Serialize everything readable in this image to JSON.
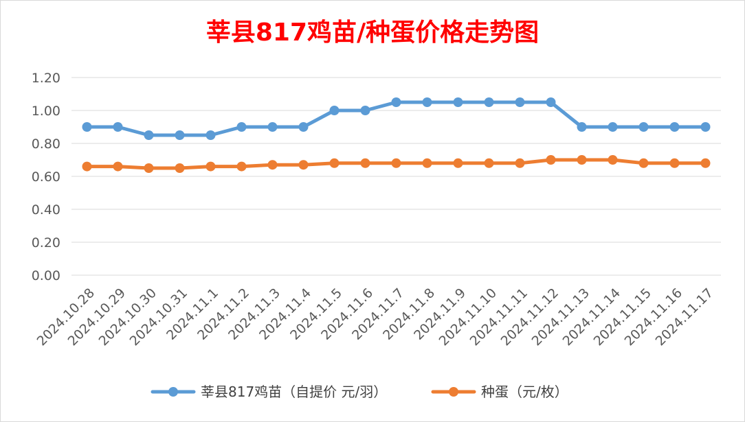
{
  "chart_data": {
    "type": "line",
    "title": "莘县817鸡苗/种蛋价格走势图",
    "title_color": "#ff0000",
    "categories": [
      "2024.10.28",
      "2024.10.29",
      "2024.10.30",
      "2024.10.31",
      "2024.11.1",
      "2024.11.2",
      "2024.11.3",
      "2024.11.4",
      "2024.11.5",
      "2024.11.6",
      "2024.11.7",
      "2024.11.8",
      "2024.11.9",
      "2024.11.10",
      "2024.11.11",
      "2024.11.12",
      "2024.11.13",
      "2024.11.14",
      "2024.11.15",
      "2024.11.16",
      "2024.11.17"
    ],
    "y_ticks": [
      "0.00",
      "0.20",
      "0.40",
      "0.60",
      "0.80",
      "1.00",
      "1.20"
    ],
    "ylim": [
      0,
      1.2
    ],
    "grid": true,
    "legend_position": "bottom",
    "series": [
      {
        "name": "莘县817鸡苗（自提价 元/羽）",
        "color": "#5b9bd5",
        "values": [
          0.9,
          0.9,
          0.85,
          0.85,
          0.85,
          0.9,
          0.9,
          0.9,
          1.0,
          1.0,
          1.05,
          1.05,
          1.05,
          1.05,
          1.05,
          1.05,
          0.9,
          0.9,
          0.9,
          0.9,
          0.9
        ]
      },
      {
        "name": "种蛋（元/枚）",
        "color": "#ed7d31",
        "values": [
          0.66,
          0.66,
          0.65,
          0.65,
          0.66,
          0.66,
          0.67,
          0.67,
          0.68,
          0.68,
          0.68,
          0.68,
          0.68,
          0.68,
          0.68,
          0.7,
          0.7,
          0.7,
          0.68,
          0.68,
          0.68
        ]
      }
    ]
  }
}
